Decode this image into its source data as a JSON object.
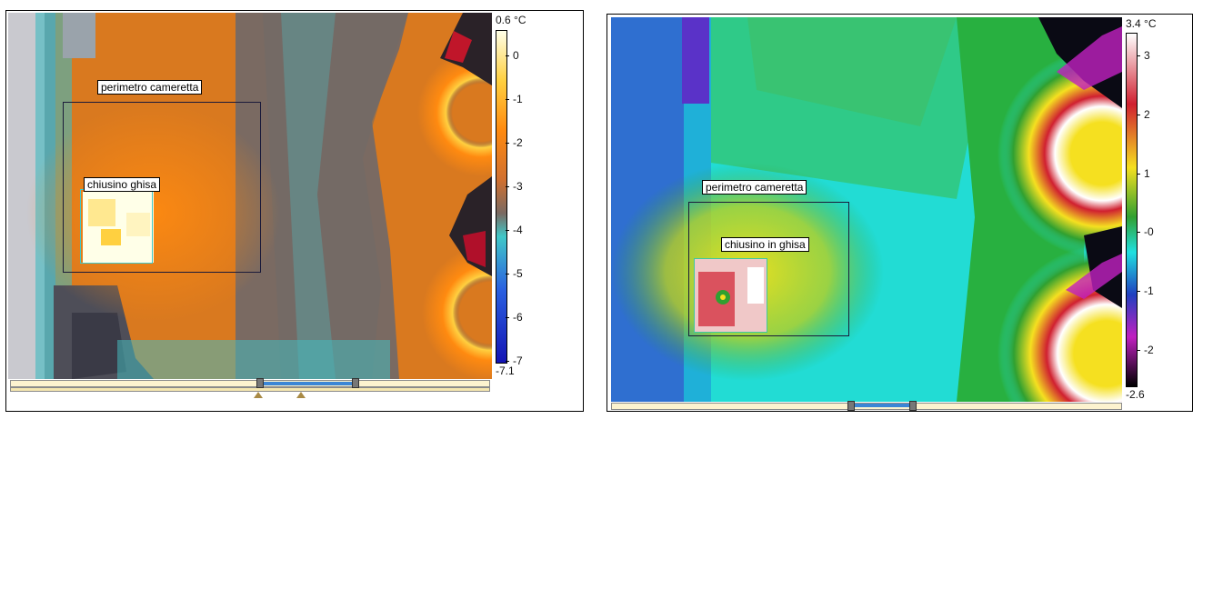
{
  "left_panel": {
    "roi_outer_label": "perimetro cameretta",
    "roi_inner_label": "chiusino ghisa",
    "scale": {
      "max": "0.6 °C",
      "min": "-7.1",
      "ticks": [
        "0",
        "-1",
        "-2",
        "-3",
        "-4",
        "-5",
        "-6",
        "-7"
      ]
    },
    "range_selector": {
      "low": 0.52,
      "high": 0.72
    }
  },
  "right_panel": {
    "roi_outer_label": "perimetro cameretta",
    "roi_inner_label": "chiusino in ghisa",
    "scale": {
      "max": "3.4 °C",
      "min": "-2.6",
      "ticks": [
        "3",
        "2",
        "1",
        "-0",
        "-1",
        "-2"
      ]
    },
    "range_selector": {
      "low": 0.47,
      "high": 0.59
    }
  },
  "colors": {
    "left_palette": [
      "#ffffe8",
      "#ffd040",
      "#ff8a10",
      "#d07030",
      "#7a6a62",
      "#40c8c8",
      "#2a60e0",
      "#1414b4"
    ],
    "right_palette": [
      "#ffffff",
      "#d02030",
      "#f5e020",
      "#30a030",
      "#20e0e0",
      "#2040c0",
      "#c020c0",
      "#000000"
    ]
  }
}
